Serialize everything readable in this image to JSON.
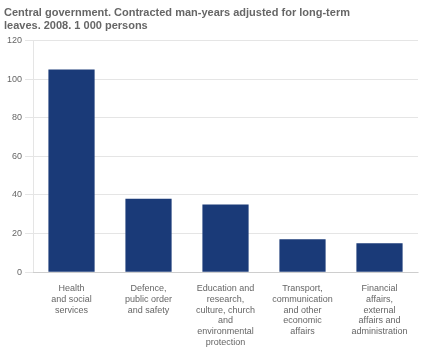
{
  "chart_data": {
    "type": "bar",
    "title": "Central government. Contracted man-years adjusted for long-term\nleaves. 2008. 1 000 persons",
    "categories": [
      "Health\nand social\nservices",
      "Defence,\npublic order\nand safety",
      "Education and\nresearch,\nculture, church\nand\nenvironmental\nprotection",
      "Transport,\ncommunication\nand other\neconomic\naffairs",
      "Financial\naffairs,\nexternal\naffairs and\nadministration"
    ],
    "values": [
      105,
      38,
      35,
      17,
      15
    ],
    "color": "#1a3a78",
    "ylim": [
      0,
      120
    ],
    "yticks": [
      0,
      20,
      40,
      60,
      80,
      100,
      120
    ],
    "grid": true
  }
}
